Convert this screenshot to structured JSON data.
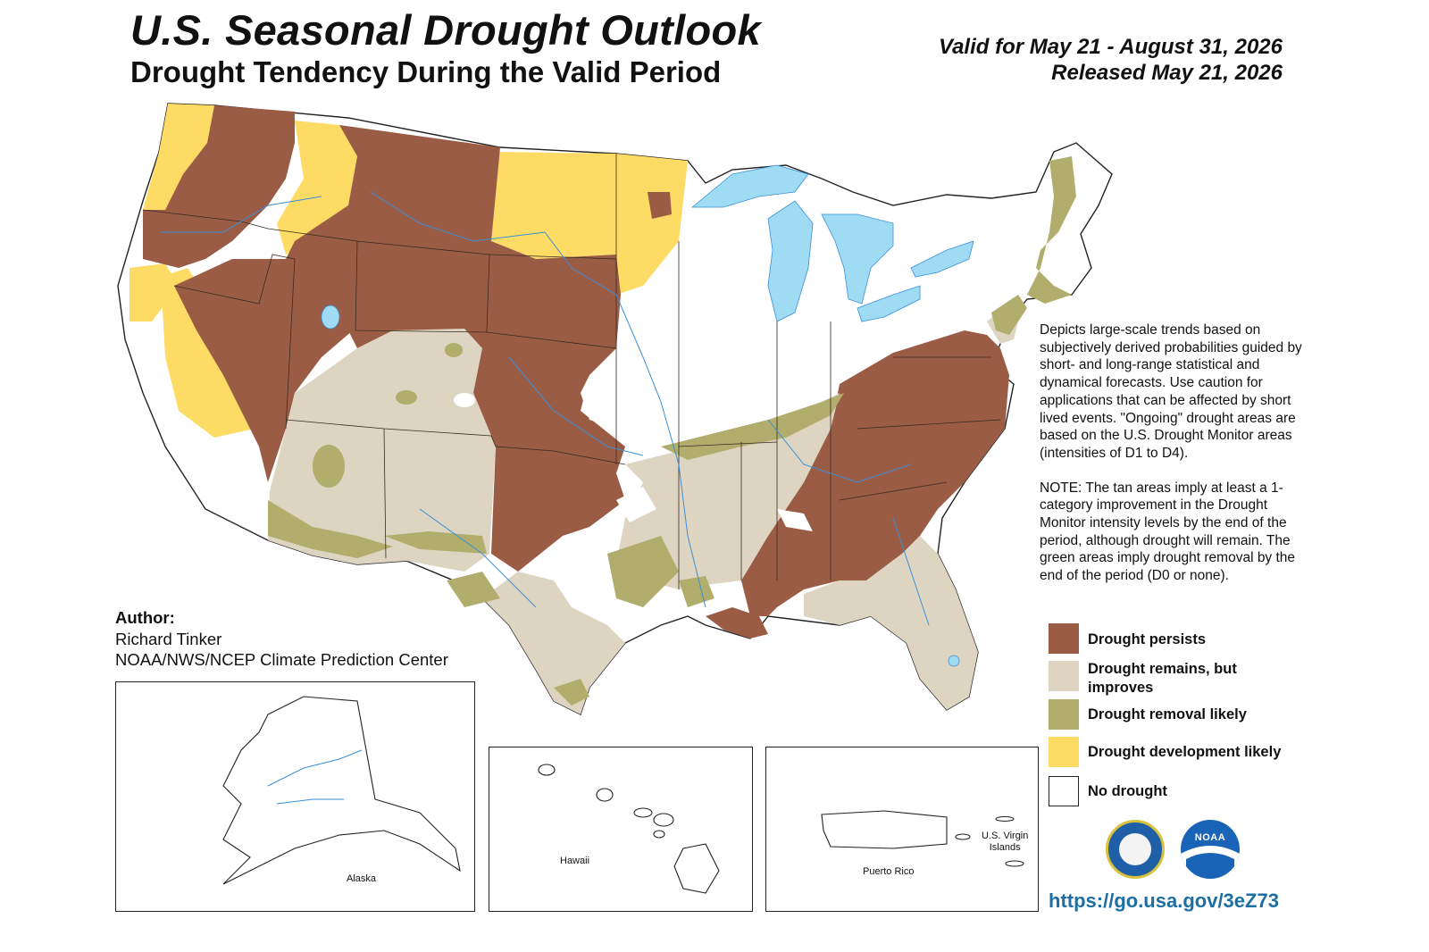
{
  "header": {
    "title": "U.S. Seasonal Drought Outlook",
    "subtitle": "Drought Tendency During the Valid Period",
    "valid_for": "Valid for May 21 - August 31, 2026",
    "released": "Released May 21, 2026"
  },
  "description": {
    "para1": "Depicts large-scale trends based on subjectively derived probabilities guided by short- and long-range statistical and dynamical forecasts. Use caution for applications that can be affected by short lived events. \"Ongoing\" drought areas are based on the U.S. Drought Monitor areas (intensities of D1 to D4).",
    "para2": "NOTE: The tan areas imply at least a 1-category improvement in the Drought Monitor intensity levels by the end of the period, although drought will remain. The green areas imply drought removal by the end of the period (D0 or none)."
  },
  "legend": [
    {
      "label": "Drought persists",
      "color": "#9b5c45"
    },
    {
      "label": "Drought remains, but improves",
      "color": "#ddd5c2"
    },
    {
      "label": "Drought removal likely",
      "color": "#b1ad6c"
    },
    {
      "label": "Drought development likely",
      "color": "#fddb65"
    },
    {
      "label": "No drought",
      "color": "#ffffff"
    }
  ],
  "author": {
    "heading": "Author:",
    "name": "Richard Tinker",
    "org": "NOAA/NWS/NCEP Climate Prediction Center"
  },
  "insets": {
    "alaska": "Alaska",
    "hawaii": "Hawaii",
    "puerto_rico": "Puerto Rico",
    "virgin_islands_1": "U.S. Virgin",
    "virgin_islands_2": "Islands"
  },
  "url": "https://go.usa.gov/3eZ73",
  "colors": {
    "persists": "#9b5c45",
    "improves": "#ddd5c2",
    "removal": "#b1ad6c",
    "development": "#fddb65",
    "water": "#9fdcf4",
    "rivers": "#3a8fd8"
  },
  "icons": [
    "doc-seal-icon",
    "noaa-logo-icon"
  ]
}
